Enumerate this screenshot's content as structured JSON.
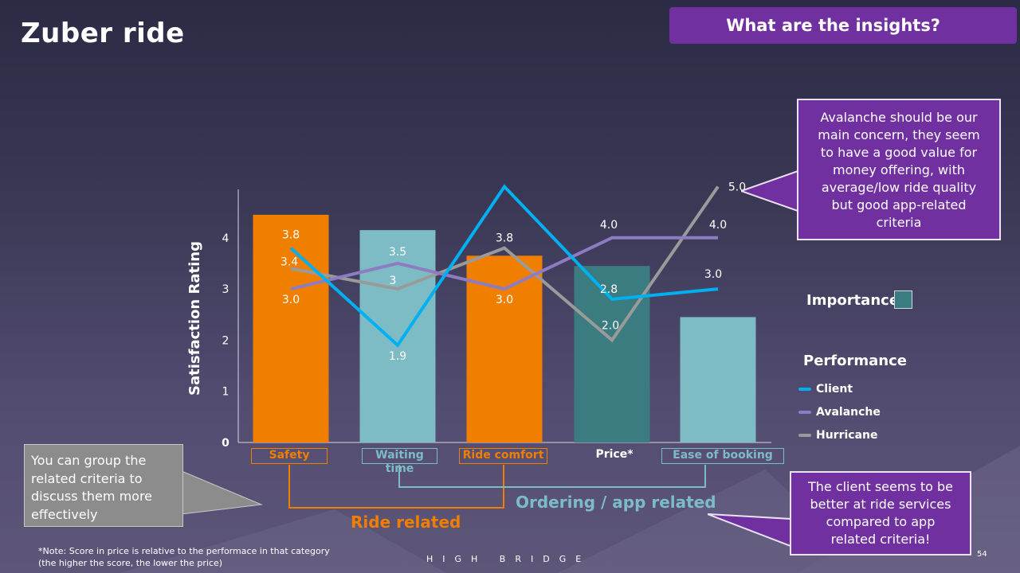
{
  "slide": {
    "title": "Zuber ride",
    "insights_button": "What are the insights?",
    "page_number": "54",
    "brand": "HIGH BRIDGE",
    "note_line1": "*Note: Score in price is relative to the performace in that category",
    "note_line2": "(the higher the score, the lower the price)"
  },
  "callouts": {
    "top_right": [
      "Avalanche should be our",
      "main concern, they seem",
      "to have a good value for",
      "money offering, with",
      "average/low ride quality",
      "but good app-related",
      "criteria"
    ],
    "bottom_right": [
      "The client seems to be",
      "better at ride services",
      "compared to app",
      "related criteria!"
    ],
    "left_tip": [
      "You can group the",
      "related criteria to",
      "discuss them more",
      "effectively"
    ]
  },
  "groups": {
    "ride_related": "Ride related",
    "ordering_related": "Ordering / app related"
  },
  "legend": {
    "importance": "Importance",
    "performance": "Performance",
    "items": [
      {
        "name": "Client",
        "color": "#00b0f0"
      },
      {
        "name": "Avalanche",
        "color": "#8e7cc3"
      },
      {
        "name": "Hurricane",
        "color": "#9a9a9a"
      }
    ]
  },
  "chart_data": {
    "type": "bar",
    "ylabel": "Satisfaction Rating",
    "y_ticks": [
      "0",
      "1",
      "2",
      "3",
      "4"
    ],
    "ylim": [
      0,
      5
    ],
    "categories": [
      "Safety",
      "Waiting time",
      "Ride comfort",
      "Price*",
      "Ease of booking"
    ],
    "importance": {
      "name": "Importance",
      "values": [
        4.45,
        4.15,
        3.65,
        3.45,
        2.45
      ],
      "colors": [
        "#f07f00",
        "#7dbcc4",
        "#f07f00",
        "#3a7c80",
        "#7dbcc4"
      ]
    },
    "series": [
      {
        "name": "Client",
        "color": "#00b0f0",
        "values": [
          3.8,
          1.9,
          5.0,
          2.8,
          3.0
        ],
        "labels": [
          "3.8",
          "1.9",
          "",
          "2.8",
          "3.0"
        ]
      },
      {
        "name": "Avalanche",
        "color": "#8e7cc3",
        "values": [
          3.0,
          3.5,
          3.0,
          4.0,
          4.0
        ],
        "labels": [
          "3.0",
          "3.5",
          "3.0",
          "4.0",
          "4.0"
        ]
      },
      {
        "name": "Hurricane",
        "color": "#9a9a9a",
        "values": [
          3.4,
          3.0,
          3.8,
          2.0,
          5.0
        ],
        "labels": [
          "3.4",
          "3",
          "3.8",
          "2.0",
          "5.0"
        ]
      }
    ],
    "category_label_colors": [
      "#f07f00",
      "#7dbcc4",
      "#f07f00",
      "#ffffff",
      "#7dbcc4"
    ],
    "category_boxed": [
      true,
      true,
      true,
      false,
      true
    ]
  }
}
